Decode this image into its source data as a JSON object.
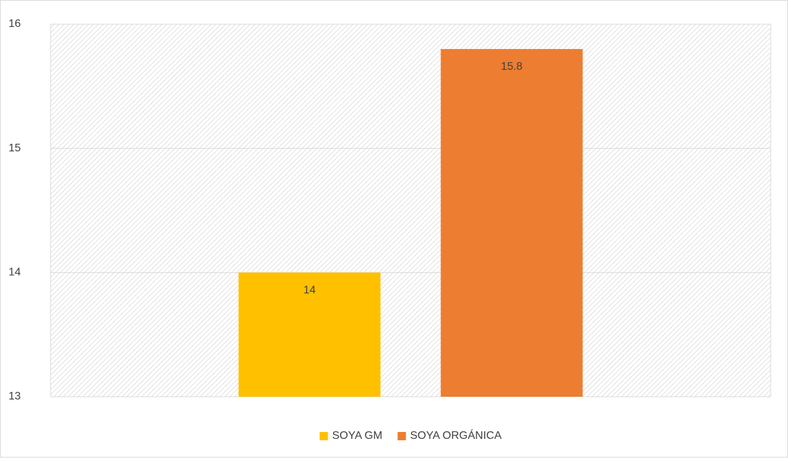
{
  "chart_data": {
    "type": "bar",
    "categories": [
      null
    ],
    "series": [
      {
        "name": "SOYA GM",
        "color": "#ffc000",
        "values": [
          14
        ]
      },
      {
        "name": "SOYA ORGÁNICA",
        "color": "#ed7d31",
        "values": [
          15.8
        ]
      }
    ],
    "ylim": [
      13,
      16
    ],
    "yticks": [
      13,
      14,
      15,
      16
    ],
    "grid": true,
    "legend": "bottom",
    "data_labels": true
  }
}
